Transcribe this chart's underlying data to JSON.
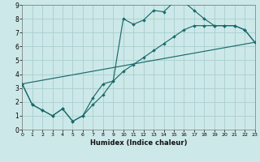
{
  "xlabel": "Humidex (Indice chaleur)",
  "bg_color": "#cde8e8",
  "grid_color": "#aacece",
  "line_color": "#1a6b6b",
  "xlim": [
    0,
    23
  ],
  "ylim": [
    0,
    9
  ],
  "xticks": [
    0,
    1,
    2,
    3,
    4,
    5,
    6,
    7,
    8,
    9,
    10,
    11,
    12,
    13,
    14,
    15,
    16,
    17,
    18,
    19,
    20,
    21,
    22,
    23
  ],
  "yticks": [
    0,
    1,
    2,
    3,
    4,
    5,
    6,
    7,
    8,
    9
  ],
  "line1_x": [
    0,
    1,
    2,
    3,
    4,
    5,
    6,
    7,
    8,
    9,
    10,
    11,
    12,
    13,
    14,
    15,
    16,
    17,
    18,
    19,
    20,
    21,
    22,
    23
  ],
  "line1_y": [
    3.3,
    1.8,
    1.4,
    1.0,
    1.5,
    0.6,
    1.0,
    1.8,
    2.5,
    3.5,
    8.0,
    7.6,
    7.9,
    8.6,
    8.5,
    9.2,
    9.2,
    8.6,
    8.0,
    7.5,
    7.5,
    7.5,
    7.2,
    6.3
  ],
  "line2_x": [
    0,
    1,
    2,
    3,
    4,
    5,
    6,
    7,
    8,
    9,
    10,
    11,
    12,
    13,
    14,
    15,
    16,
    17,
    18,
    19,
    20,
    21,
    22,
    23
  ],
  "line2_y": [
    3.3,
    1.8,
    1.4,
    1.0,
    1.5,
    0.6,
    1.0,
    2.3,
    3.3,
    3.5,
    4.2,
    4.7,
    5.2,
    5.7,
    6.2,
    6.7,
    7.2,
    7.5,
    7.5,
    7.5,
    7.5,
    7.5,
    7.2,
    6.3
  ],
  "line3_x": [
    0,
    23
  ],
  "line3_y": [
    3.3,
    6.3
  ]
}
